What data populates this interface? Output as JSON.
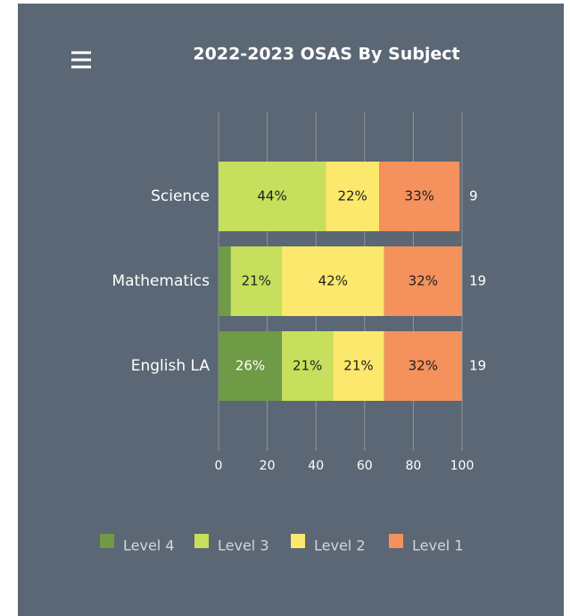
{
  "chart_data": {
    "type": "stacked_bar_horizontal",
    "title": "2022-2023 OSAS By Subject",
    "categories": [
      "Science",
      "Mathematics",
      "English LA"
    ],
    "series": [
      {
        "name": "Level 4",
        "color": "#6f9a46",
        "values": [
          0,
          5,
          26
        ],
        "value_labels": [
          null,
          null,
          "26%"
        ]
      },
      {
        "name": "Level 3",
        "color": "#c6df5c",
        "values": [
          44,
          21,
          21
        ],
        "value_labels": [
          "44%",
          "21%",
          "21%"
        ]
      },
      {
        "name": "Level 2",
        "color": "#fbe86c",
        "values": [
          22,
          42,
          21
        ],
        "value_labels": [
          "22%",
          "42%",
          "21%"
        ]
      },
      {
        "name": "Level 1",
        "color": "#f4915c",
        "values": [
          33,
          32,
          32
        ],
        "value_labels": [
          "33%",
          "32%",
          "32%"
        ]
      }
    ],
    "counts": [
      9,
      19,
      19
    ],
    "xlim": [
      0,
      100
    ],
    "xticks": [
      0,
      20,
      40,
      60,
      80,
      100
    ],
    "grid": true,
    "legend": "bottom"
  }
}
